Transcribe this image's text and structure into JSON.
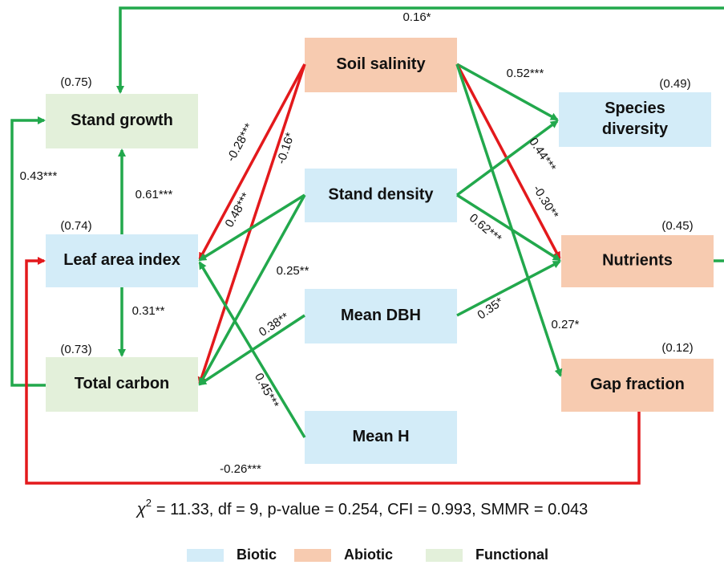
{
  "nodes": [
    {
      "lines": [
        "Soil salinity"
      ],
      "fill": "#f7cbb0",
      "r2": null
    },
    {
      "lines": [
        "Stand density"
      ],
      "fill": "#d3ecf8",
      "r2": null
    },
    {
      "lines": [
        "Mean DBH"
      ],
      "fill": "#d3ecf8",
      "r2": null
    },
    {
      "lines": [
        "Mean H"
      ],
      "fill": "#d3ecf8",
      "r2": null
    },
    {
      "lines": [
        "Stand growth"
      ],
      "fill": "#e3f0da",
      "r2": "(0.75)"
    },
    {
      "lines": [
        "Leaf area index"
      ],
      "fill": "#d3ecf8",
      "r2": "(0.74)"
    },
    {
      "lines": [
        "Total carbon"
      ],
      "fill": "#e3f0da",
      "r2": "(0.73)"
    },
    {
      "lines": [
        "Species",
        "diversity"
      ],
      "fill": "#d3ecf8",
      "r2": "(0.49)"
    },
    {
      "lines": [
        "Nutrients"
      ],
      "fill": "#f7cbb0",
      "r2": "(0.45)"
    },
    {
      "lines": [
        "Gap fraction"
      ],
      "fill": "#f7cbb0",
      "r2": "(0.12)"
    }
  ],
  "edges": [
    {
      "label": "0.16*",
      "color": "#22a84c"
    },
    {
      "label": "0.43***",
      "color": "#22a84c"
    },
    {
      "label": "0.61***",
      "color": "#22a84c"
    },
    {
      "label": "0.31**",
      "color": "#22a84c"
    },
    {
      "label": "-0.26***",
      "color": "#e3191c"
    },
    {
      "label": "-0.28***",
      "color": "#e3191c"
    },
    {
      "label": "-0.16*",
      "color": "#e3191c"
    },
    {
      "label": "0.48***",
      "color": "#22a84c"
    },
    {
      "label": "0.25**",
      "color": "#22a84c"
    },
    {
      "label": "0.38**",
      "color": "#22a84c"
    },
    {
      "label": "0.45***",
      "color": "#22a84c"
    },
    {
      "label": "0.52***",
      "color": "#22a84c"
    },
    {
      "label": "-0.30**",
      "color": "#e3191c"
    },
    {
      "label": "0.27*",
      "color": "#22a84c"
    },
    {
      "label": "0.44***",
      "color": "#22a84c"
    },
    {
      "label": "0.62***",
      "color": "#22a84c"
    },
    {
      "label": "0.35*",
      "color": "#22a84c"
    }
  ],
  "fit": {
    "symbol": "χ",
    "superscript": "2",
    "text": "= 11.33, df = 9, p-value = 0.254, CFI = 0.993, SMMR = 0.043"
  },
  "legend": [
    {
      "label": "Biotic",
      "color": "#d3ecf8"
    },
    {
      "label": "Abiotic",
      "color": "#f7cbb0"
    },
    {
      "label": "Functional",
      "color": "#e3f0da"
    }
  ]
}
